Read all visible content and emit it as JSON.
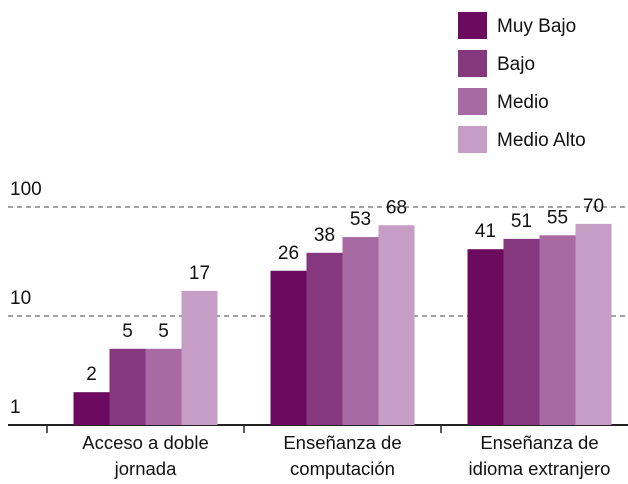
{
  "chart_data": {
    "type": "bar",
    "categories": [
      "Acceso a doble jornada",
      "Enseñanza de computación",
      "Enseñanza de idioma extranjero"
    ],
    "series": [
      {
        "name": "Muy Bajo",
        "color": "#6b0a5e",
        "values": [
          2,
          26,
          41
        ]
      },
      {
        "name": "Bajo",
        "color": "#86387e",
        "values": [
          5,
          38,
          51
        ]
      },
      {
        "name": "Medio",
        "color": "#a76aa2",
        "values": [
          5,
          53,
          55
        ]
      },
      {
        "name": "Medio Alto",
        "color": "#c59dc5",
        "values": [
          17,
          68,
          70
        ]
      }
    ],
    "log_scale": true,
    "ylim": [
      1,
      100
    ],
    "yticks": [
      1,
      10,
      100
    ],
    "grid": true,
    "legend": "top-right"
  }
}
